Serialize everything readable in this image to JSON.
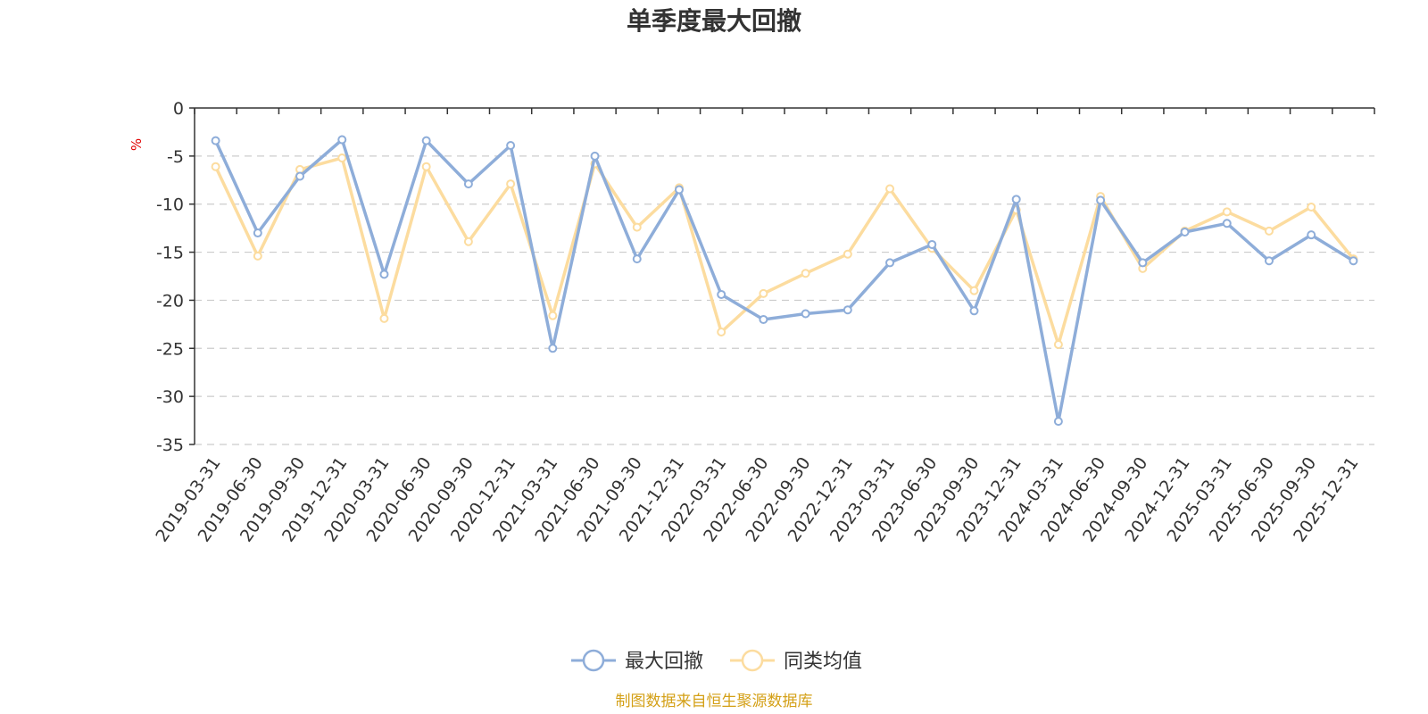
{
  "chart_data": {
    "type": "line",
    "title": "单季度最大回撤",
    "y_unit": "%",
    "ylim": [
      -35,
      0
    ],
    "y_ticks": [
      0,
      -5,
      -10,
      -15,
      -20,
      -25,
      -30,
      -35
    ],
    "grid": "horizontal dashed",
    "legend_position": "bottom-center",
    "categories": [
      "2019-03-31",
      "2019-06-30",
      "2019-09-30",
      "2019-12-31",
      "2020-03-31",
      "2020-06-30",
      "2020-09-30",
      "2020-12-31",
      "2021-03-31",
      "2021-06-30",
      "2021-09-30",
      "2021-12-31",
      "2022-03-31",
      "2022-06-30",
      "2022-09-30",
      "2022-12-31",
      "2023-03-31",
      "2023-06-30",
      "2023-09-30",
      "2023-12-31",
      "2024-03-31",
      "2024-06-30",
      "2024-09-30",
      "2024-12-31",
      "2025-03-31",
      "2025-06-30",
      "2025-09-30",
      "2025-12-31"
    ],
    "series": [
      {
        "name": "最大回撤",
        "color": "#8eadd9",
        "values": [
          -3.4,
          -13.0,
          -7.1,
          -3.3,
          -17.3,
          -3.4,
          -7.9,
          -3.9,
          -25.0,
          -5.0,
          -15.7,
          -8.5,
          -19.4,
          -22.0,
          -21.4,
          -21.0,
          -16.1,
          -14.2,
          -21.1,
          -9.5,
          -32.6,
          -9.6,
          -16.1,
          -12.9,
          -12.0,
          -15.9,
          -13.2,
          -15.9
        ]
      },
      {
        "name": "同类均值",
        "color": "#fcdc9f",
        "values": [
          -6.1,
          -15.4,
          -6.4,
          -5.2,
          -21.9,
          -6.1,
          -13.9,
          -7.9,
          -21.6,
          -5.8,
          -12.4,
          -8.3,
          -23.3,
          -19.3,
          -17.2,
          -15.2,
          -8.4,
          -14.6,
          -19.0,
          -10.6,
          -24.6,
          -9.2,
          -16.7,
          -12.8,
          -10.8,
          -12.8,
          -10.3,
          -15.7
        ]
      }
    ]
  },
  "source_note": "制图数据来自恒生聚源数据库",
  "colors": {
    "axis": "#333333",
    "grid": "#cccccc",
    "unit": "#e00000",
    "source": "#d4a017"
  }
}
